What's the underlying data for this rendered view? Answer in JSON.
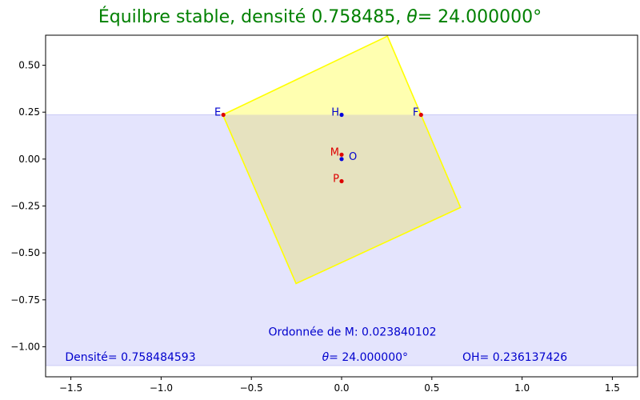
{
  "title": {
    "prefix": "Équilbre stable, densité 0.758485, ",
    "theta_symbol": "θ",
    "suffix": "= 24.000000°"
  },
  "chart_data": {
    "type": "scatter",
    "xlim": [
      -1.64,
      1.64
    ],
    "ylim": [
      -1.16,
      0.66
    ],
    "xticks": [
      -1.5,
      -1.0,
      -0.5,
      0.0,
      0.5,
      1.0,
      1.5
    ],
    "xtick_labels": [
      "−1.5",
      "−1.0",
      "−0.5",
      "0.0",
      "0.5",
      "1.0",
      "1.5"
    ],
    "yticks": [
      0.5,
      0.25,
      0.0,
      -0.25,
      -0.5,
      -0.75,
      -1.0
    ],
    "ytick_labels": [
      "0.50",
      "0.25",
      "0.00",
      "−0.25",
      "−0.50",
      "−0.75",
      "−1.00"
    ],
    "grid": false,
    "water": {
      "top": 0.236,
      "bottom": -1.1,
      "color": "#e4e4fd"
    },
    "square": {
      "vertices": [
        [
          -0.658,
          0.236
        ],
        [
          0.254,
          0.655
        ],
        [
          0.659,
          -0.258
        ],
        [
          -0.252,
          -0.663
        ]
      ],
      "fill": "#ffffb0",
      "submerged_fill": "#e6e2bf",
      "stroke": "#ffff00"
    },
    "points": [
      {
        "name": "E",
        "x": -0.655,
        "y": 0.236,
        "color": "#dd0000",
        "label_side": "left",
        "label_color": "#0000cd"
      },
      {
        "name": "F",
        "x": 0.44,
        "y": 0.236,
        "color": "#dd0000",
        "label_side": "left",
        "label_color": "#0000cd"
      },
      {
        "name": "H",
        "x": 0.0,
        "y": 0.236,
        "color": "#0000dd",
        "label_side": "left",
        "label_color": "#0000cd"
      },
      {
        "name": "M",
        "x": 0.0,
        "y": 0.0238,
        "color": "#dd0000",
        "label_side": "left",
        "label_color": "#dd0000"
      },
      {
        "name": "O",
        "x": 0.0,
        "y": 0.0,
        "color": "#0000dd",
        "label_side": "right",
        "label_color": "#0000cd"
      },
      {
        "name": "P",
        "x": 0.0,
        "y": -0.118,
        "color": "#dd0000",
        "label_side": "left",
        "label_color": "#dd0000"
      }
    ],
    "annotations": {
      "ordonnee": "Ordonnée de M:  0.023840102",
      "densite": "Densité= 0.758484593",
      "theta_symbol": "θ",
      "theta_value": "= 24.000000°",
      "oh": "OH= 0.236137426"
    }
  }
}
